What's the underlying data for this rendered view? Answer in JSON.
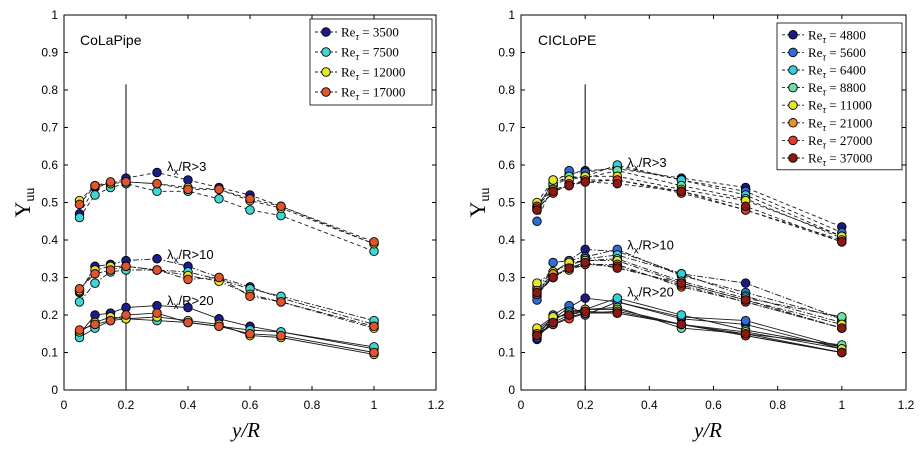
{
  "figure": {
    "xlabel": "y/R",
    "ylabel_main": "Υ",
    "ylabel_sub": "uu",
    "legend_prefix": "Re",
    "legend_sub": "τ"
  },
  "chart_data": [
    {
      "type": "line",
      "title": "CoLaPipe",
      "xlabel": "y/R",
      "ylabel": "Υuu",
      "xlim": [
        0,
        1.2
      ],
      "ylim": [
        0,
        1
      ],
      "xticks": [
        "0",
        "0.2",
        "0.4",
        "0.6",
        "0.8",
        "1",
        "1.2"
      ],
      "yticks": [
        "0",
        "0.1",
        "0.2",
        "0.3",
        "0.4",
        "0.5",
        "0.6",
        "0.7",
        "0.8",
        "0.9",
        "1"
      ],
      "vline_x": 0.2,
      "legend_location": "top-right",
      "annotations": [
        {
          "text": "λx/R>3",
          "lambda": "λ",
          "sub": "x",
          "rest": "/R>3",
          "x": 0.3,
          "y": 0.595
        },
        {
          "text": "λx/R>10",
          "lambda": "λ",
          "sub": "x",
          "rest": "/R>10",
          "x": 0.3,
          "y": 0.36
        },
        {
          "text": "λx/R>20",
          "lambda": "λ",
          "sub": "x",
          "rest": "/R>20",
          "x": 0.3,
          "y": 0.238
        }
      ],
      "x": [
        0.05,
        0.1,
        0.15,
        0.2,
        0.3,
        0.4,
        0.5,
        0.6,
        0.7,
        1.0
      ],
      "series": [
        {
          "name": "Re_τ = 3500",
          "label": " = 3500",
          "color": "#1c1c8c",
          "groups": {
            "3": [
              0.47,
              0.54,
              0.55,
              0.565,
              0.58,
              0.56,
              0.54,
              0.52,
              0.49,
              0.39
            ],
            "10": [
              0.26,
              0.33,
              0.335,
              0.345,
              0.35,
              0.33,
              0.3,
              0.275,
              0.245,
              0.175
            ],
            "20": [
              0.15,
              0.2,
              0.205,
              0.22,
              0.225,
              0.22,
              0.19,
              0.17,
              0.155,
              0.11
            ]
          }
        },
        {
          "name": "Re_τ = 7500",
          "label": " = 7500",
          "color": "#3fd6d6",
          "groups": {
            "3": [
              0.46,
              0.52,
              0.54,
              0.55,
              0.53,
              0.53,
              0.51,
              0.48,
              0.465,
              0.37
            ],
            "10": [
              0.235,
              0.285,
              0.315,
              0.32,
              0.32,
              0.315,
              0.295,
              0.27,
              0.25,
              0.185
            ],
            "20": [
              0.14,
              0.165,
              0.185,
              0.19,
              0.185,
              0.18,
              0.17,
              0.16,
              0.155,
              0.115
            ]
          }
        },
        {
          "name": "Re_τ = 12000",
          "label": " = 12000",
          "color": "#e6e62a",
          "groups": {
            "3": [
              0.505,
              0.545,
              0.55,
              0.555,
              0.55,
              0.54,
              0.535,
              0.505,
              0.485,
              0.39
            ],
            "10": [
              0.265,
              0.32,
              0.33,
              0.33,
              0.32,
              0.305,
              0.29,
              0.255,
              0.235,
              0.165
            ],
            "20": [
              0.155,
              0.18,
              0.195,
              0.19,
              0.195,
              0.185,
              0.175,
              0.145,
              0.14,
              0.095
            ]
          }
        },
        {
          "name": "Re_τ = 17000",
          "label": " = 17000",
          "color": "#e0552e",
          "groups": {
            "3": [
              0.495,
              0.545,
              0.555,
              0.555,
              0.55,
              0.535,
              0.535,
              0.51,
              0.49,
              0.395
            ],
            "10": [
              0.27,
              0.31,
              0.32,
              0.33,
              0.32,
              0.295,
              0.3,
              0.25,
              0.235,
              0.17
            ],
            "20": [
              0.16,
              0.175,
              0.185,
              0.2,
              0.205,
              0.18,
              0.17,
              0.15,
              0.145,
              0.1
            ]
          }
        }
      ]
    },
    {
      "type": "line",
      "title": "CICLoPE",
      "xlabel": "y/R",
      "ylabel": "Υuu",
      "xlim": [
        0,
        1.2
      ],
      "ylim": [
        0,
        1
      ],
      "xticks": [
        "0",
        "0.2",
        "0.4",
        "0.6",
        "0.8",
        "1",
        "1.2"
      ],
      "yticks": [
        "0",
        "0.1",
        "0.2",
        "0.3",
        "0.4",
        "0.5",
        "0.6",
        "0.7",
        "0.8",
        "0.9",
        "1"
      ],
      "vline_x": 0.2,
      "legend_location": "top-right",
      "annotations": [
        {
          "text": "λx/R>3",
          "lambda": "λ",
          "sub": "x",
          "rest": "/R>3",
          "x": 0.3,
          "y": 0.605
        },
        {
          "text": "λx/R>10",
          "lambda": "λ",
          "sub": "x",
          "rest": "/R>10",
          "x": 0.3,
          "y": 0.385
        },
        {
          "text": "λx/R>20",
          "lambda": "λ",
          "sub": "x",
          "rest": "/R>20",
          "x": 0.3,
          "y": 0.26
        }
      ],
      "x": [
        0.05,
        0.1,
        0.15,
        0.2,
        0.3,
        0.5,
        0.7,
        1.0
      ],
      "series": [
        {
          "name": "Re_τ = 4800",
          "label": " = 4800",
          "color": "#1a1a80",
          "groups": {
            "3": [
              0.48,
              0.56,
              0.575,
              0.585,
              0.59,
              0.565,
              0.54,
              0.435
            ],
            "10": [
              0.25,
              0.31,
              0.345,
              0.375,
              0.37,
              0.31,
              0.285,
              0.19
            ],
            "20": [
              0.135,
              0.19,
              0.22,
              0.245,
              0.235,
              0.19,
              0.175,
              0.11
            ]
          }
        },
        {
          "name": "Re_τ = 5600",
          "label": " = 5600",
          "color": "#2c6ed6",
          "groups": {
            "3": [
              0.45,
              0.55,
              0.585,
              0.58,
              0.595,
              0.56,
              0.53,
              0.42
            ],
            "10": [
              0.24,
              0.34,
              0.345,
              0.355,
              0.375,
              0.305,
              0.26,
              0.19
            ],
            "20": [
              0.14,
              0.2,
              0.225,
              0.2,
              0.235,
              0.195,
              0.185,
              0.115
            ]
          }
        },
        {
          "name": "Re_τ = 6400",
          "label": " = 6400",
          "color": "#35cfd6",
          "groups": {
            "3": [
              0.485,
              0.545,
              0.565,
              0.57,
              0.6,
              0.56,
              0.52,
              0.41
            ],
            "10": [
              0.27,
              0.3,
              0.33,
              0.35,
              0.36,
              0.31,
              0.25,
              0.18
            ],
            "20": [
              0.155,
              0.185,
              0.21,
              0.215,
              0.245,
              0.2,
              0.16,
              0.115
            ]
          }
        },
        {
          "name": "Re_τ = 8800",
          "label": " = 8800",
          "color": "#6fe0a4",
          "groups": {
            "3": [
              0.49,
              0.55,
              0.57,
              0.565,
              0.585,
              0.545,
              0.51,
              0.405
            ],
            "10": [
              0.275,
              0.315,
              0.335,
              0.345,
              0.35,
              0.29,
              0.245,
              0.195
            ],
            "20": [
              0.16,
              0.19,
              0.205,
              0.215,
              0.22,
              0.165,
              0.15,
              0.12
            ]
          }
        },
        {
          "name": "Re_τ = 11000",
          "label": " = 11000",
          "color": "#e6e62a",
          "groups": {
            "3": [
              0.5,
              0.56,
              0.56,
              0.57,
              0.57,
              0.535,
              0.505,
              0.41
            ],
            "10": [
              0.285,
              0.315,
              0.34,
              0.345,
              0.345,
              0.285,
              0.24,
              0.175
            ],
            "20": [
              0.165,
              0.195,
              0.2,
              0.215,
              0.215,
              0.175,
              0.155,
              0.11
            ]
          }
        },
        {
          "name": "Re_τ = 21000",
          "label": " = 21000",
          "color": "#e89030",
          "groups": {
            "3": [
              0.49,
              0.535,
              0.545,
              0.56,
              0.56,
              0.53,
              0.48,
              0.4
            ],
            "10": [
              0.265,
              0.31,
              0.32,
              0.335,
              0.335,
              0.275,
              0.235,
              0.165
            ],
            "20": [
              0.15,
              0.175,
              0.195,
              0.205,
              0.21,
              0.175,
              0.145,
              0.1
            ]
          }
        },
        {
          "name": "Re_τ = 27000",
          "label": " = 27000",
          "color": "#e03c2a",
          "groups": {
            "3": [
              0.485,
              0.525,
              0.55,
              0.555,
              0.56,
              0.525,
              0.48,
              0.395
            ],
            "10": [
              0.255,
              0.3,
              0.325,
              0.335,
              0.33,
              0.28,
              0.235,
              0.165
            ],
            "20": [
              0.145,
              0.175,
              0.19,
              0.205,
              0.205,
              0.175,
              0.145,
              0.1
            ]
          }
        },
        {
          "name": "Re_τ = 37000",
          "label": " = 37000",
          "color": "#8c1a14",
          "groups": {
            "3": [
              0.48,
              0.53,
              0.545,
              0.555,
              0.55,
              0.53,
              0.49,
              0.395
            ],
            "10": [
              0.26,
              0.3,
              0.325,
              0.34,
              0.325,
              0.285,
              0.24,
              0.165
            ],
            "20": [
              0.145,
              0.18,
              0.2,
              0.21,
              0.205,
              0.175,
              0.15,
              0.1
            ]
          }
        }
      ]
    }
  ]
}
